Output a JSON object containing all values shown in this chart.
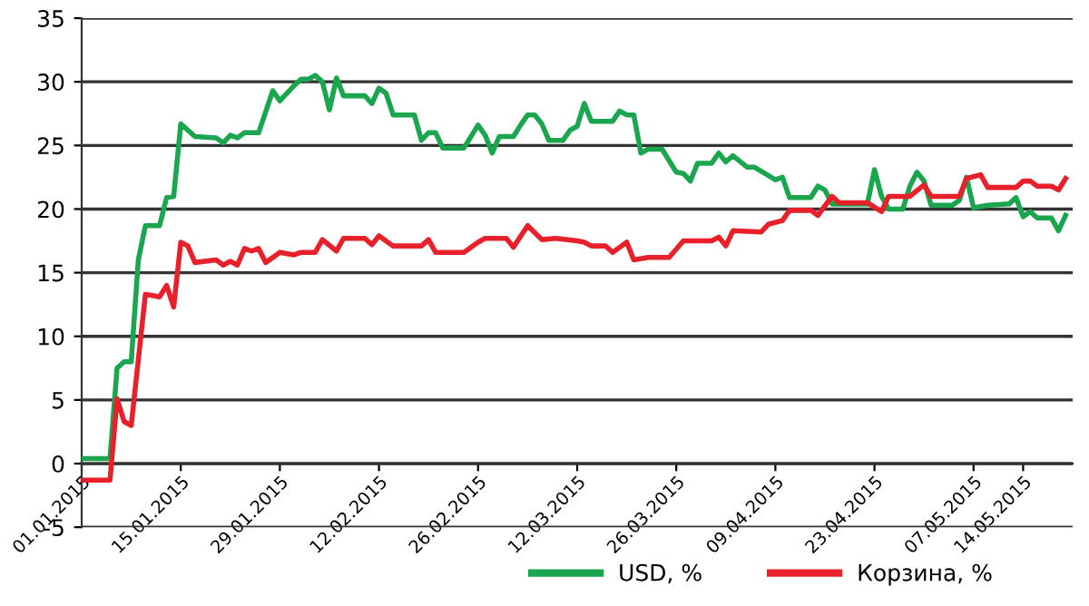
{
  "chart_data": {
    "type": "line",
    "xlim": [
      "2015-01-01",
      "2015-05-21"
    ],
    "xticks": [
      {
        "value": "2015-01-01",
        "label": "01.01.2015"
      },
      {
        "value": "2015-01-15",
        "label": "15.01.2015"
      },
      {
        "value": "2015-01-29",
        "label": "29.01.2015"
      },
      {
        "value": "2015-02-12",
        "label": "12.02.2015"
      },
      {
        "value": "2015-02-26",
        "label": "26.02.2015"
      },
      {
        "value": "2015-03-12",
        "label": "12.03.2015"
      },
      {
        "value": "2015-03-26",
        "label": "26.03.2015"
      },
      {
        "value": "2015-04-09",
        "label": "09.04.2015"
      },
      {
        "value": "2015-04-23",
        "label": "23.04.2015"
      },
      {
        "value": "2015-05-07",
        "label": "07.05.2015"
      },
      {
        "value": "2015-05-14",
        "label": "14.05.2015"
      }
    ],
    "ylim": [
      -5,
      35
    ],
    "yticks": [
      -5,
      0,
      5,
      10,
      15,
      20,
      25,
      30,
      35
    ],
    "grid": "y",
    "legend": "bottom",
    "marker": "none",
    "line_style": "solid",
    "series": [
      {
        "name": "USD, %",
        "color": "#1aa54f",
        "x": [
          "2015-01-01",
          "2015-01-05",
          "2015-01-06",
          "2015-01-07",
          "2015-01-08",
          "2015-01-09",
          "2015-01-10",
          "2015-01-12",
          "2015-01-13",
          "2015-01-14",
          "2015-01-15",
          "2015-01-17",
          "2015-01-20",
          "2015-01-21",
          "2015-01-22",
          "2015-01-23",
          "2015-01-24",
          "2015-01-26",
          "2015-01-28",
          "2015-01-29",
          "2015-01-31",
          "2015-02-01",
          "2015-02-02",
          "2015-02-03",
          "2015-02-04",
          "2015-02-05",
          "2015-02-06",
          "2015-02-07",
          "2015-02-10",
          "2015-02-11",
          "2015-02-12",
          "2015-02-13",
          "2015-02-14",
          "2015-02-17",
          "2015-02-18",
          "2015-02-19",
          "2015-02-20",
          "2015-02-21",
          "2015-02-24",
          "2015-02-26",
          "2015-02-27",
          "2015-02-28",
          "2015-03-01",
          "2015-03-03",
          "2015-03-04",
          "2015-03-05",
          "2015-03-06",
          "2015-03-07",
          "2015-03-08",
          "2015-03-10",
          "2015-03-11",
          "2015-03-12",
          "2015-03-13",
          "2015-03-14",
          "2015-03-17",
          "2015-03-18",
          "2015-03-19",
          "2015-03-20",
          "2015-03-21",
          "2015-03-22",
          "2015-03-24",
          "2015-03-26",
          "2015-03-27",
          "2015-03-28",
          "2015-03-29",
          "2015-03-31",
          "2015-04-01",
          "2015-04-02",
          "2015-04-03",
          "2015-04-05",
          "2015-04-06",
          "2015-04-09",
          "2015-04-10",
          "2015-04-11",
          "2015-04-14",
          "2015-04-15",
          "2015-04-16",
          "2015-04-17",
          "2015-04-22",
          "2015-04-23",
          "2015-04-24",
          "2015-04-25",
          "2015-04-27",
          "2015-04-28",
          "2015-04-29",
          "2015-04-30",
          "2015-05-01",
          "2015-05-04",
          "2015-05-05",
          "2015-05-06",
          "2015-05-07",
          "2015-05-09",
          "2015-05-12",
          "2015-05-13",
          "2015-05-14",
          "2015-05-15",
          "2015-05-16",
          "2015-05-18",
          "2015-05-19",
          "2015-05-20"
        ],
        "values": [
          0.4,
          0.4,
          7.5,
          8,
          8,
          16,
          18.7,
          18.7,
          20.9,
          21,
          26.7,
          25.7,
          25.6,
          25.2,
          25.8,
          25.6,
          26,
          26,
          29.3,
          28.5,
          29.7,
          30.2,
          30.2,
          30.5,
          30,
          27.8,
          30.3,
          28.9,
          28.9,
          28.3,
          29.5,
          29.1,
          27.4,
          27.4,
          25.4,
          26,
          26,
          24.8,
          24.8,
          26.6,
          25.8,
          24.4,
          25.7,
          25.7,
          26.6,
          27.4,
          27.4,
          26.7,
          25.4,
          25.4,
          26.2,
          26.5,
          28.3,
          26.9,
          26.9,
          27.7,
          27.4,
          27.4,
          24.4,
          24.7,
          24.7,
          22.9,
          22.8,
          22.2,
          23.6,
          23.6,
          24.4,
          23.7,
          24.2,
          23.3,
          23.3,
          22.3,
          22.5,
          20.9,
          20.9,
          21.8,
          21.5,
          20.4,
          20.4,
          23.1,
          21,
          20,
          20,
          21.8,
          22.9,
          22.2,
          20.3,
          20.3,
          20.7,
          22.5,
          20.1,
          20.3,
          20.4,
          20.9,
          19.4,
          19.8,
          19.3,
          19.3,
          18.3,
          19.5
        ]
      },
      {
        "name": "Корзина, %",
        "color": "#e8202a",
        "x": [
          "2015-01-01",
          "2015-01-05",
          "2015-01-06",
          "2015-01-07",
          "2015-01-08",
          "2015-01-10",
          "2015-01-11",
          "2015-01-12",
          "2015-01-13",
          "2015-01-14",
          "2015-01-15",
          "2015-01-16",
          "2015-01-17",
          "2015-01-20",
          "2015-01-21",
          "2015-01-22",
          "2015-01-23",
          "2015-01-24",
          "2015-01-25",
          "2015-01-26",
          "2015-01-27",
          "2015-01-29",
          "2015-01-31",
          "2015-02-01",
          "2015-02-03",
          "2015-02-04",
          "2015-02-06",
          "2015-02-07",
          "2015-02-10",
          "2015-02-11",
          "2015-02-12",
          "2015-02-14",
          "2015-02-18",
          "2015-02-19",
          "2015-02-20",
          "2015-02-24",
          "2015-02-26",
          "2015-02-27",
          "2015-03-02",
          "2015-03-03",
          "2015-03-05",
          "2015-03-07",
          "2015-03-09",
          "2015-03-12",
          "2015-03-13",
          "2015-03-14",
          "2015-03-16",
          "2015-03-17",
          "2015-03-19",
          "2015-03-20",
          "2015-03-22",
          "2015-03-25",
          "2015-03-27",
          "2015-03-31",
          "2015-04-01",
          "2015-04-02",
          "2015-04-03",
          "2015-04-07",
          "2015-04-08",
          "2015-04-10",
          "2015-04-11",
          "2015-04-14",
          "2015-04-15",
          "2015-04-17",
          "2015-04-18",
          "2015-04-22",
          "2015-04-24",
          "2015-04-25",
          "2015-04-28",
          "2015-04-30",
          "2015-05-01",
          "2015-05-05",
          "2015-05-06",
          "2015-05-08",
          "2015-05-09",
          "2015-05-13",
          "2015-05-14",
          "2015-05-15",
          "2015-05-16",
          "2015-05-18",
          "2015-05-19",
          "2015-05-20"
        ],
        "values": [
          -1.3,
          -1.3,
          5.1,
          3.3,
          3.0,
          13.3,
          13.2,
          13.1,
          14,
          12.3,
          17.4,
          17.1,
          15.8,
          16,
          15.6,
          15.9,
          15.6,
          16.9,
          16.7,
          16.9,
          15.8,
          16.6,
          16.4,
          16.6,
          16.6,
          17.6,
          16.7,
          17.7,
          17.7,
          17.2,
          17.9,
          17.1,
          17.1,
          17.6,
          16.6,
          16.6,
          17.4,
          17.7,
          17.7,
          17,
          18.7,
          17.6,
          17.7,
          17.5,
          17.4,
          17.1,
          17.1,
          16.6,
          17.4,
          16,
          16.2,
          16.2,
          17.5,
          17.5,
          17.8,
          17.1,
          18.3,
          18.2,
          18.8,
          19.1,
          19.9,
          19.9,
          19.5,
          21,
          20.5,
          20.5,
          19.8,
          21,
          21,
          21.9,
          21,
          21,
          22.4,
          22.7,
          21.7,
          21.7,
          22.2,
          22.2,
          21.8,
          21.8,
          21.5,
          22.4
        ]
      }
    ]
  }
}
